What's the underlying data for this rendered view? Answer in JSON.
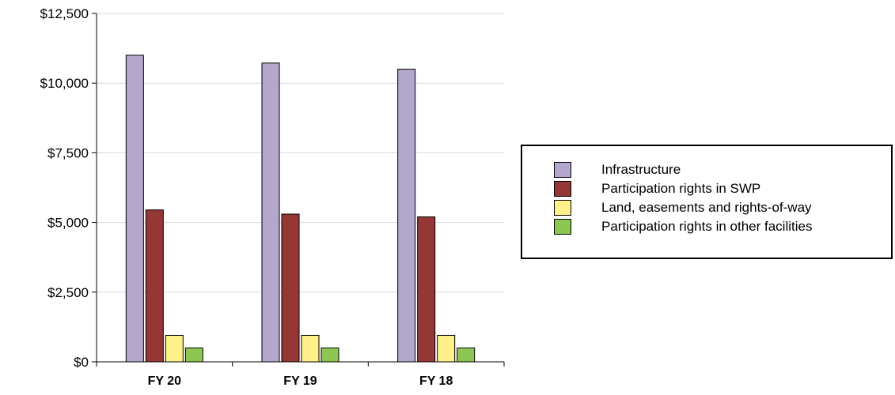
{
  "chart_data": {
    "type": "bar",
    "categories": [
      "FY 20",
      "FY 19",
      "FY 18"
    ],
    "series": [
      {
        "name": "Infrastructure",
        "color": "#b4a7cc",
        "values": [
          11000,
          10720,
          10500
        ]
      },
      {
        "name": "Participation rights in SWP",
        "color": "#953735",
        "values": [
          5450,
          5300,
          5200
        ]
      },
      {
        "name": "Land, easements and rights-of-way",
        "color": "#fff08a",
        "values": [
          950,
          950,
          950
        ]
      },
      {
        "name": "Participation rights in other facilities",
        "color": "#8dc653",
        "values": [
          500,
          500,
          500
        ]
      }
    ],
    "ylim": [
      0,
      12500
    ],
    "yticks": [
      0,
      2500,
      5000,
      7500,
      10000,
      12500
    ],
    "ytick_labels": [
      "$0",
      "$2,500",
      "$5,000",
      "$7,500",
      "$10,000",
      "$12,500"
    ],
    "grid": true,
    "legend_position": "right"
  }
}
